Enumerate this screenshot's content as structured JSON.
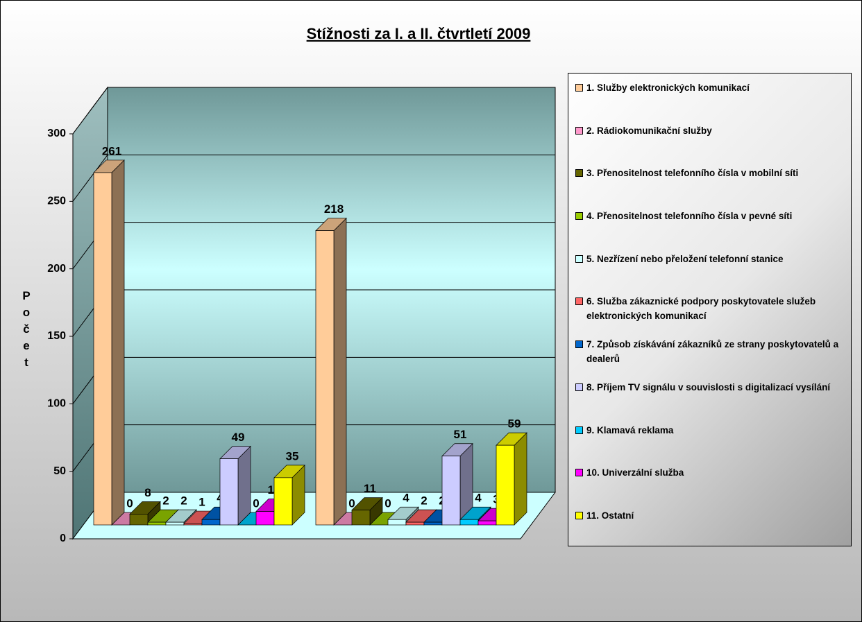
{
  "chart_data": {
    "type": "bar3d",
    "title": "Stížnosti za I. a II. čtvrtletí 2009",
    "y_label": "Počet",
    "categories": [
      null,
      null
    ],
    "series": [
      {
        "name": "1. Služby elektronických komunikací",
        "color": "#FFCC99",
        "values": [
          261,
          218
        ]
      },
      {
        "name": "2. Rádiokomunikační služby",
        "color": "#FF99CC",
        "values": [
          0,
          0
        ]
      },
      {
        "name": "3. Přenositelnost telefonního čísla v mobilní síti",
        "color": "#666600",
        "values": [
          8,
          11
        ]
      },
      {
        "name": "4. Přenositelnost telefonního čísla v pevné síti",
        "color": "#99CC00",
        "values": [
          2,
          0
        ]
      },
      {
        "name": "5. Nezřízení nebo přeložení telefonní stanice",
        "color": "#CCFFFF",
        "values": [
          2,
          4
        ]
      },
      {
        "name": "6. Služba zákaznické podpory poskytovatele služeb elektronických komunikací",
        "color": "#FF6666",
        "values": [
          1,
          2
        ]
      },
      {
        "name": "7. Způsob získávání zákazníků ze strany poskytovatelů a dealerů",
        "color": "#0066CC",
        "values": [
          4,
          2
        ]
      },
      {
        "name": "8. Příjem TV signálu v souvislosti s digitalizací vysílání",
        "color": "#CCCCFF",
        "values": [
          49,
          51
        ]
      },
      {
        "name": "9. Klamavá reklama",
        "color": "#00CCFF",
        "values": [
          0,
          4
        ]
      },
      {
        "name": "10. Univerzální služba",
        "color": "#FF00FF",
        "values": [
          10,
          3
        ]
      },
      {
        "name": "11. Ostatní",
        "color": "#FFFF00",
        "values": [
          35,
          59
        ]
      }
    ],
    "ylim": [
      0,
      300
    ],
    "yticks": [
      0,
      50,
      100,
      150,
      200,
      250,
      300
    ],
    "grid": true,
    "legend": "right"
  }
}
